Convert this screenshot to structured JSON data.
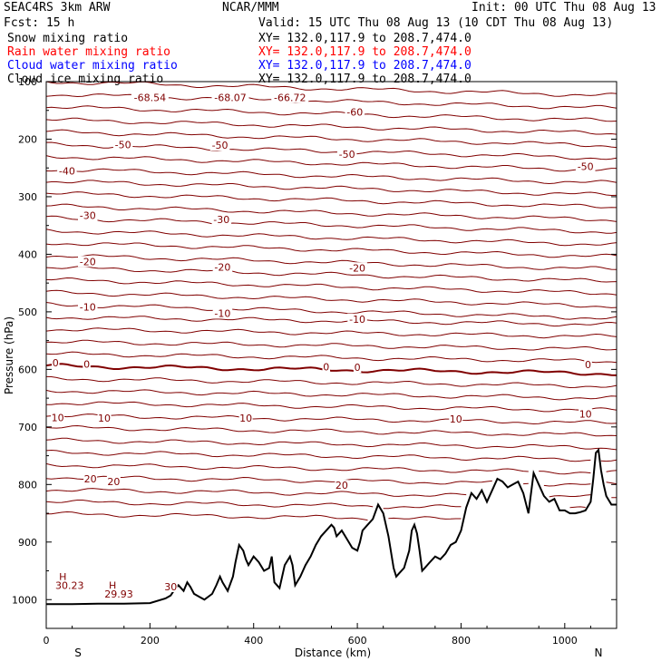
{
  "header": {
    "model": "SEAC4RS  3km ARW",
    "org": "NCAR/MMM",
    "init": "Init: 00 UTC Thu 08 Aug 13",
    "fcst": "Fcst:   15 h",
    "valid": "Valid: 15 UTC Thu 08 Aug 13 (10 CDT Thu 08 Aug 13)"
  },
  "legend": [
    {
      "label": "Snow mixing ratio",
      "xy": "XY= 132.0,117.9 to 208.7,474.0",
      "color": "#000000"
    },
    {
      "label": "Rain water mixing ratio",
      "xy": "XY= 132.0,117.9 to 208.7,474.0",
      "color": "#ff0000"
    },
    {
      "label": "Cloud water mixing ratio",
      "xy": "XY= 132.0,117.9 to 208.7,474.0",
      "color": "#0000ff"
    },
    {
      "label": "Cloud ice mixing ratio",
      "xy": "XY= 132.0,117.9 to 208.7,474.0",
      "color": "#000000"
    }
  ],
  "chart_data": {
    "type": "line",
    "xlabel": "Distance (km)",
    "ylabel": "Pressure (hPa)",
    "xlim": [
      0,
      1100
    ],
    "ylim": [
      1050,
      100
    ],
    "x_ticks": [
      0,
      200,
      400,
      600,
      800,
      1000
    ],
    "y_ticks": [
      100,
      200,
      300,
      400,
      500,
      600,
      700,
      800,
      900,
      1000
    ],
    "left_end_label": "S",
    "right_end_label": "N",
    "contour_color": "#800000",
    "terrain_color": "#000000",
    "isotherm_start_hpa": [
      100,
      122,
      144,
      166,
      187,
      209,
      230,
      252,
      273,
      294,
      316,
      337,
      359,
      380,
      402,
      423,
      444,
      466,
      487,
      509,
      530,
      552,
      573,
      594,
      616,
      637,
      658,
      680,
      701,
      723,
      744,
      766,
      787,
      809,
      830,
      851
    ],
    "contour_labels": [
      {
        "text": "-68.54",
        "x": 200,
        "p": 129
      },
      {
        "text": "-68.07",
        "x": 355,
        "p": 129
      },
      {
        "text": "-66.72",
        "x": 470,
        "p": 129
      },
      {
        "text": "-60",
        "x": 595,
        "p": 154
      },
      {
        "text": "-50",
        "x": 148,
        "p": 211
      },
      {
        "text": "-50",
        "x": 335,
        "p": 212
      },
      {
        "text": "-50",
        "x": 580,
        "p": 228
      },
      {
        "text": "-50",
        "x": 1040,
        "p": 249
      },
      {
        "text": "-40",
        "x": 40,
        "p": 257
      },
      {
        "text": "-30",
        "x": 80,
        "p": 334
      },
      {
        "text": "-30",
        "x": 338,
        "p": 341
      },
      {
        "text": "-20",
        "x": 80,
        "p": 414
      },
      {
        "text": "-20",
        "x": 340,
        "p": 424
      },
      {
        "text": "-20",
        "x": 600,
        "p": 425
      },
      {
        "text": "-10",
        "x": 80,
        "p": 493
      },
      {
        "text": "-10",
        "x": 340,
        "p": 504
      },
      {
        "text": "-10",
        "x": 600,
        "p": 514
      },
      {
        "text": "0",
        "x": 18,
        "p": 590
      },
      {
        "text": "0",
        "x": 78,
        "p": 592
      },
      {
        "text": "0",
        "x": 540,
        "p": 597
      },
      {
        "text": "0",
        "x": 600,
        "p": 598
      },
      {
        "text": "0",
        "x": 1045,
        "p": 593
      },
      {
        "text": "10",
        "x": 22,
        "p": 685
      },
      {
        "text": "10",
        "x": 112,
        "p": 686
      },
      {
        "text": "10",
        "x": 385,
        "p": 686
      },
      {
        "text": "10",
        "x": 790,
        "p": 688
      },
      {
        "text": "10",
        "x": 1040,
        "p": 679
      },
      {
        "text": "20",
        "x": 85,
        "p": 792
      },
      {
        "text": "20",
        "x": 130,
        "p": 796
      },
      {
        "text": "20",
        "x": 570,
        "p": 803
      },
      {
        "text": "30",
        "x": 240,
        "p": 979
      },
      {
        "text": "H",
        "x": 32,
        "p": 962
      },
      {
        "text": "30.23",
        "x": 45,
        "p": 977
      },
      {
        "text": "H",
        "x": 128,
        "p": 977
      },
      {
        "text": "29.93",
        "x": 140,
        "p": 992
      }
    ],
    "terrain": {
      "x": [
        0,
        50,
        100,
        150,
        200,
        230,
        240,
        248,
        255,
        265,
        272,
        278,
        285,
        295,
        305,
        320,
        328,
        335,
        340,
        350,
        360,
        365,
        372,
        380,
        385,
        390,
        400,
        410,
        420,
        430,
        435,
        440,
        450,
        460,
        470,
        475,
        480,
        490,
        500,
        510,
        520,
        530,
        540,
        550,
        555,
        560,
        570,
        580,
        590,
        600,
        605,
        610,
        620,
        630,
        640,
        650,
        660,
        670,
        675,
        680,
        690,
        700,
        705,
        710,
        715,
        720,
        725,
        730,
        740,
        750,
        760,
        770,
        780,
        790,
        800,
        810,
        820,
        830,
        840,
        850,
        860,
        870,
        880,
        890,
        900,
        910,
        920,
        930,
        940,
        950,
        960,
        970,
        980,
        990,
        1000,
        1010,
        1020,
        1030,
        1040,
        1050,
        1055,
        1060,
        1065,
        1070,
        1075,
        1080,
        1090,
        1100
      ],
      "p": [
        1008,
        1008,
        1007,
        1007,
        1006,
        998,
        993,
        982,
        975,
        985,
        970,
        978,
        990,
        995,
        1000,
        990,
        975,
        960,
        970,
        985,
        960,
        935,
        905,
        915,
        930,
        940,
        925,
        935,
        950,
        945,
        925,
        970,
        980,
        940,
        925,
        940,
        975,
        960,
        940,
        925,
        905,
        890,
        880,
        870,
        875,
        890,
        880,
        895,
        910,
        915,
        900,
        880,
        870,
        860,
        835,
        850,
        890,
        945,
        960,
        955,
        945,
        915,
        880,
        870,
        885,
        915,
        950,
        945,
        935,
        925,
        930,
        920,
        905,
        900,
        880,
        840,
        815,
        825,
        810,
        830,
        810,
        790,
        795,
        805,
        800,
        795,
        815,
        850,
        780,
        800,
        820,
        830,
        825,
        845,
        845,
        850,
        850,
        848,
        845,
        830,
        790,
        745,
        740,
        775,
        800,
        820,
        835,
        835
      ]
    }
  }
}
